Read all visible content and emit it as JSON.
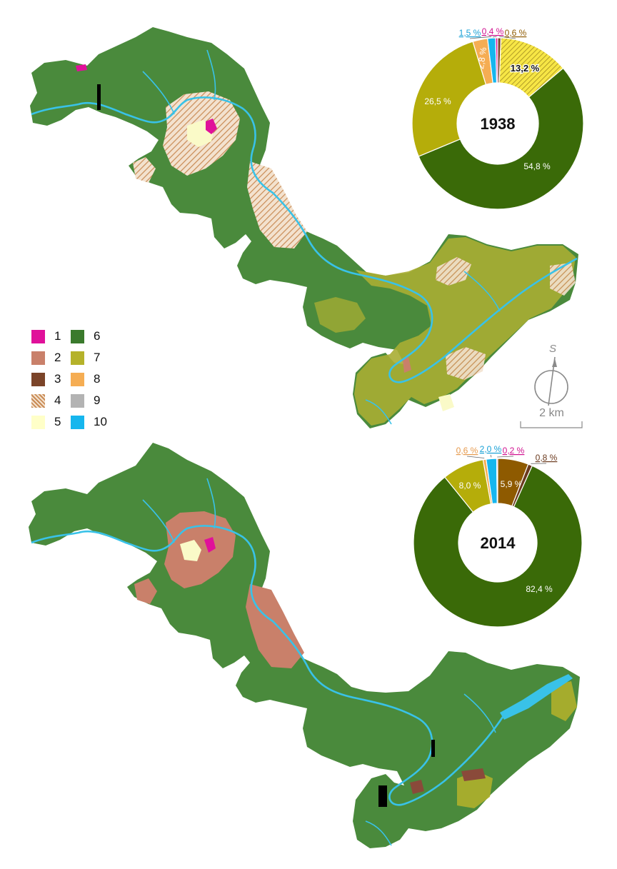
{
  "maps": [
    {
      "name": "map-1938"
    },
    {
      "name": "map-2014"
    }
  ],
  "legend": {
    "items": [
      {
        "label": "1",
        "color": "#e0119a"
      },
      {
        "label": "2",
        "color": "#c9806a"
      },
      {
        "label": "3",
        "color": "#7b4429"
      },
      {
        "label": "4",
        "color": "#c9a27a",
        "pattern": "hatched"
      },
      {
        "label": "5",
        "color": "#ffffc8"
      },
      {
        "label": "6",
        "color": "#3a7a2c"
      },
      {
        "label": "7",
        "color": "#b5b22a"
      },
      {
        "label": "8",
        "color": "#f5ad53"
      },
      {
        "label": "9",
        "color": "#b3b3b3"
      },
      {
        "label": "10",
        "color": "#16b6ee"
      }
    ]
  },
  "scale_bar": {
    "label": "2 km",
    "north_label": "S"
  },
  "chart_data": [
    {
      "type": "pie",
      "title": "1938",
      "donut": true,
      "slices": [
        {
          "category": "8",
          "value": 2.8,
          "label": "2,8 %",
          "color": "#f5ad53"
        },
        {
          "category": "10",
          "value": 1.5,
          "label": "1,5 %",
          "color": "#16b6ee"
        },
        {
          "category": "1",
          "value": 0.4,
          "label": "0,4 %",
          "color": "#e0119a"
        },
        {
          "category": "3",
          "value": 0.6,
          "label": "0,6 %",
          "color": "#7b4429"
        },
        {
          "category": "4",
          "value": 13.2,
          "label": "13,2 %",
          "color": "#f7e645"
        },
        {
          "category": "6",
          "value": 54.8,
          "label": "54,8 %",
          "color": "#3a6a08"
        },
        {
          "category": "7",
          "value": 26.5,
          "label": "26,5 %",
          "color": "#b5ad0a"
        }
      ]
    },
    {
      "type": "pie",
      "title": "2014",
      "donut": true,
      "slices": [
        {
          "category": "8",
          "value": 0.6,
          "label": "0,6 %",
          "color": "#f5ad53"
        },
        {
          "category": "10",
          "value": 2.0,
          "label": "2,0 %",
          "color": "#16b6ee"
        },
        {
          "category": "1",
          "value": 0.2,
          "label": "0,2 %",
          "color": "#e0119a"
        },
        {
          "category": "2",
          "value": 5.9,
          "label": "5,9 %",
          "color": "#8e5a00"
        },
        {
          "category": "3",
          "value": 0.8,
          "label": "0,8 %",
          "color": "#6b3a1e"
        },
        {
          "category": "6",
          "value": 82.4,
          "label": "82,4 %",
          "color": "#3a6a08"
        },
        {
          "category": "7",
          "value": 8.0,
          "label": "8,0 %",
          "color": "#b5ad0a"
        }
      ]
    }
  ]
}
